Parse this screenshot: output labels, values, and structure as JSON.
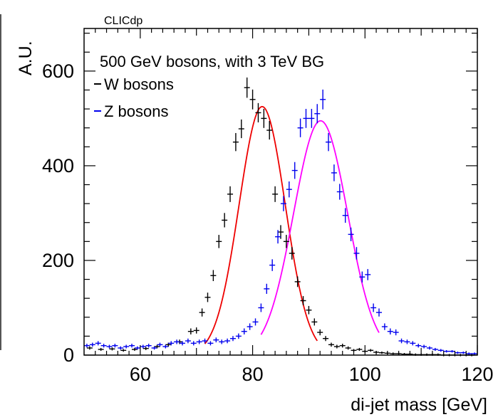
{
  "chart_data": {
    "type": "scatter",
    "title": "",
    "annotation": "CLICdp",
    "xlabel": "di-jet mass [GeV]",
    "ylabel": "A.U.",
    "xlim": [
      50,
      120
    ],
    "ylim": [
      0,
      690
    ],
    "xticks": [
      60,
      80,
      100,
      120
    ],
    "yticks": [
      0,
      200,
      400,
      600
    ],
    "legend": {
      "placement": "top-left",
      "header": "500 GeV bosons, with 3 TeV BG",
      "entries": [
        {
          "label": "W bosons",
          "color": "#000000"
        },
        {
          "label": "Z bosons",
          "color": "#0000ee"
        }
      ]
    },
    "series": [
      {
        "name": "W bosons",
        "color": "#000000",
        "fit_color": "#ee0000",
        "fit": {
          "mean": 81.7,
          "sigma": 4.1,
          "amplitude": 525,
          "range": [
            71.5,
            91.5
          ]
        },
        "x": [
          51,
          53,
          55,
          57,
          59,
          61,
          63,
          65,
          67,
          69,
          70,
          71,
          72,
          73,
          74,
          75,
          76,
          77,
          78,
          79,
          80,
          81,
          82,
          83,
          84,
          85,
          86,
          87,
          88,
          89,
          90,
          91,
          92,
          93,
          94,
          95,
          96,
          97,
          98,
          99,
          100,
          101,
          102,
          103,
          104,
          105,
          106,
          107,
          108,
          109,
          110,
          111,
          112,
          113,
          114,
          115,
          116,
          117,
          118,
          119
        ],
        "y": [
          15,
          12,
          13,
          10,
          12,
          14,
          18,
          22,
          28,
          50,
          52,
          90,
          122,
          168,
          240,
          285,
          340,
          450,
          478,
          565,
          540,
          512,
          500,
          475,
          340,
          260,
          240,
          215,
          155,
          115,
          95,
          70,
          48,
          35,
          22,
          18,
          20,
          15,
          10,
          12,
          8,
          10,
          6,
          5,
          4,
          3,
          3,
          2,
          2,
          1,
          1,
          1,
          1,
          1,
          0,
          0,
          0,
          0,
          0,
          0
        ]
      },
      {
        "name": "Z bosons",
        "color": "#0000ee",
        "fit_color": "#ff00ff",
        "fit": {
          "mean": 92.1,
          "sigma": 4.8,
          "amplitude": 495,
          "range": [
            81.5,
            102.5
          ]
        },
        "x": [
          50.5,
          51.5,
          52.5,
          53.5,
          54.5,
          55.5,
          56.5,
          57.5,
          58.5,
          59.5,
          60.5,
          61.5,
          62.5,
          63.5,
          64.5,
          65.5,
          66.5,
          67.5,
          68.5,
          69.5,
          70.5,
          71.5,
          72.5,
          73.5,
          74.5,
          75.5,
          76.5,
          77.5,
          78.5,
          79.5,
          80.5,
          81.5,
          82.5,
          83.5,
          84.5,
          85.5,
          86.5,
          87.5,
          88.5,
          89.5,
          90.5,
          91.5,
          92.5,
          93.5,
          94.5,
          95.5,
          96.5,
          97.5,
          98.5,
          99.5,
          100.5,
          101.5,
          102.5,
          103.5,
          104.5,
          105.5,
          106.5,
          107.5,
          108.5,
          109.5,
          110.5,
          111.5,
          112.5,
          113.5,
          114.5,
          115.5,
          116.5,
          117.5,
          118.5,
          119.5
        ],
        "y": [
          20,
          22,
          25,
          20,
          18,
          20,
          15,
          18,
          20,
          15,
          18,
          20,
          15,
          22,
          18,
          25,
          28,
          25,
          30,
          25,
          28,
          30,
          25,
          32,
          28,
          30,
          35,
          40,
          50,
          60,
          70,
          100,
          140,
          190,
          250,
          320,
          350,
          390,
          480,
          500,
          500,
          510,
          540,
          450,
          385,
          345,
          295,
          255,
          215,
          165,
          170,
          100,
          90,
          60,
          50,
          48,
          30,
          28,
          25,
          20,
          18,
          15,
          12,
          10,
          8,
          8,
          5,
          5,
          3,
          3
        ]
      }
    ]
  }
}
